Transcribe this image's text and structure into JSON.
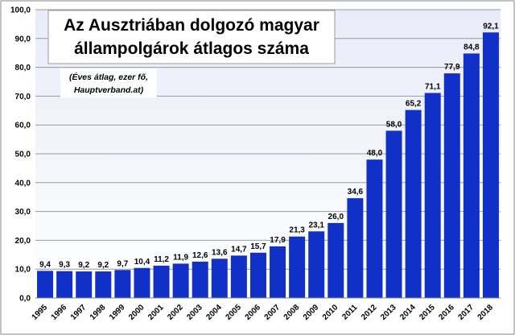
{
  "chart_data": {
    "type": "bar",
    "title_lines": [
      "Az Ausztriában dolgozó magyar",
      "állampolgárok átlagos száma"
    ],
    "annotation_lines": [
      "(Éves átlag, ezer fő,",
      "Hauptverband.at)"
    ],
    "categories": [
      "1995",
      "1996",
      "1997",
      "1998",
      "1999",
      "2000",
      "2001",
      "2002",
      "2003",
      "2004",
      "2005",
      "2006",
      "2007",
      "2008",
      "2009",
      "2010",
      "2011",
      "2012",
      "2013",
      "2014",
      "2015",
      "2016",
      "2017",
      "2018"
    ],
    "values": [
      9.4,
      9.3,
      9.2,
      9.2,
      9.7,
      10.4,
      11.2,
      11.9,
      12.6,
      13.6,
      14.7,
      15.7,
      17.9,
      21.3,
      23.1,
      26.0,
      34.6,
      48.0,
      58.0,
      65.2,
      71.1,
      77.9,
      84.8,
      92.1
    ],
    "value_labels": [
      "9,4",
      "9,3",
      "9,2",
      "9,2",
      "9,7",
      "10,4",
      "11,2",
      "11,9",
      "12,6",
      "13,6",
      "14,7",
      "15,7",
      "17,9",
      "21,3",
      "23,1",
      "26,0",
      "34,6",
      "48,0",
      "58,0",
      "65,2",
      "71,1",
      "77,9",
      "84,8",
      "92,1"
    ],
    "y_ticks": [
      "0,0",
      "10,0",
      "20,0",
      "30,0",
      "40,0",
      "50,0",
      "60,0",
      "70,0",
      "80,0",
      "90,0",
      "100,0"
    ],
    "ylim": [
      0,
      100
    ],
    "grid": true,
    "colors": {
      "bar": "#1030c8",
      "plot_background_top": "#e9ebf8",
      "plot_background_bottom": "#ffffff",
      "gridline": "#9a9a9a",
      "frame": "#8a8a8a"
    }
  }
}
